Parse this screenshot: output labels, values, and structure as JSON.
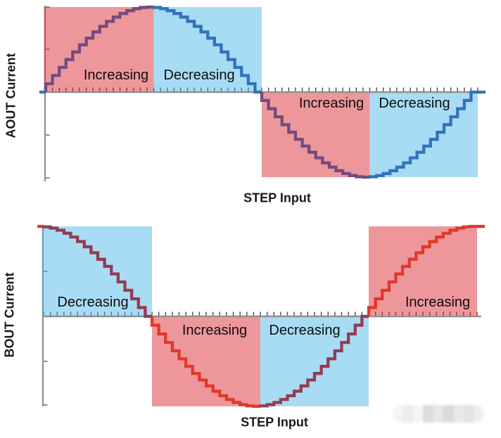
{
  "figure": {
    "description": "Two stacked stepped-waveform charts showing microstepping output current versus STEP input pulses, with shaded quadrants labeled by current-magnitude trend.",
    "background": "#ffffff"
  },
  "colors": {
    "region_red_hex": "#DB222B",
    "region_blue_hex": "#46B5E8",
    "region_alpha": 0.47,
    "axis_line": "#8F8F8F",
    "axis_tick": "#4A4A4A",
    "label_text": "#0D0D0D",
    "curve_purple": "#744B7E",
    "curve_blue": "#3273BB",
    "curve_maroon": "#943C52",
    "curve_red": "#E1382B"
  },
  "chart_data": [
    {
      "type": "line",
      "subtype": "stepped-staircase",
      "title": "",
      "xlabel": "STEP Input",
      "ylabel": "AOUT Current",
      "waveform": "sine",
      "phase": "starts at zero, rises to positive peak",
      "cycles_shown": 1,
      "steps_per_cycle": 64,
      "steps_per_quarter": 16,
      "x_ticks_count": 65,
      "x_tick_labels": [],
      "y_tick_labels": [],
      "ylim_normalized": [
        -1,
        1
      ],
      "y_ticks_normalized": [
        1,
        0.5,
        -0.5,
        -1
      ],
      "grid": false,
      "legend": false,
      "quadrants": [
        {
          "label": "Increasing",
          "side": "above-axis",
          "x_fraction_range": [
            0,
            0.25
          ],
          "region_color": "red",
          "curve_color": "purple"
        },
        {
          "label": "Decreasing",
          "side": "above-axis",
          "x_fraction_range": [
            0.25,
            0.5
          ],
          "region_color": "blue",
          "curve_color": "blue"
        },
        {
          "label": "Increasing",
          "side": "below-axis",
          "x_fraction_range": [
            0.5,
            0.75
          ],
          "region_color": "red",
          "curve_color": "purple"
        },
        {
          "label": "Decreasing",
          "side": "below-axis",
          "x_fraction_range": [
            0.75,
            1
          ],
          "region_color": "blue",
          "curve_color": "blue"
        }
      ]
    },
    {
      "type": "line",
      "subtype": "stepped-staircase",
      "title": "",
      "xlabel": "STEP Input",
      "ylabel": "BOUT Current",
      "waveform": "cosine",
      "phase": "starts at positive peak, falls through zero to negative peak",
      "cycles_shown": 1,
      "steps_per_cycle": 64,
      "steps_per_quarter": 16,
      "x_ticks_count": 65,
      "x_tick_labels": [],
      "y_tick_labels": [],
      "ylim_normalized": [
        -1,
        1
      ],
      "y_ticks_normalized": [
        1,
        0.5,
        -0.5,
        -1
      ],
      "grid": false,
      "legend": false,
      "quadrants": [
        {
          "label": "Decreasing",
          "side": "above-axis",
          "x_fraction_range": [
            0,
            0.25
          ],
          "region_color": "blue",
          "curve_color": "maroon"
        },
        {
          "label": "Increasing",
          "side": "below-axis",
          "x_fraction_range": [
            0.25,
            0.5
          ],
          "region_color": "red",
          "curve_color": "red"
        },
        {
          "label": "Decreasing",
          "side": "below-axis",
          "x_fraction_range": [
            0.5,
            0.75
          ],
          "region_color": "blue",
          "curve_color": "maroon"
        },
        {
          "label": "Increasing",
          "side": "above-axis",
          "x_fraction_range": [
            0.75,
            1
          ],
          "region_color": "red",
          "curve_color": "red"
        }
      ]
    }
  ],
  "watermark": {
    "shades": [
      "#f4f4f4",
      "#ececec",
      "#f6f6f6",
      "#dcdcdc",
      "#e6e6e6",
      "#d9d9d9",
      "#e8e8e8",
      "#e2e2e2",
      "#efefef"
    ]
  }
}
